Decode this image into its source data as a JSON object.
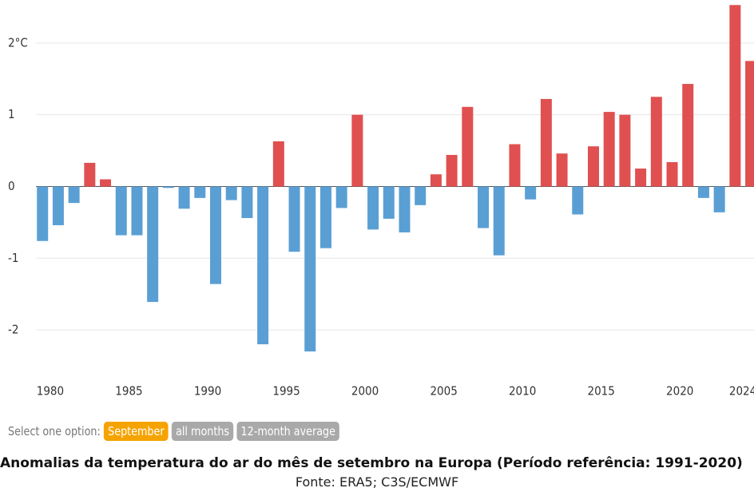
{
  "chart_data": {
    "type": "bar",
    "title": "Anomalias da temperatura do ar do mês de setembro na Europa (Período referência: 1991-2020)",
    "source": "Fonte: ERA5; C3S/ECMWF",
    "x": [
      1979,
      1980,
      1981,
      1982,
      1983,
      1984,
      1985,
      1986,
      1987,
      1988,
      1989,
      1990,
      1991,
      1992,
      1993,
      1994,
      1995,
      1996,
      1997,
      1998,
      1999,
      2000,
      2001,
      2002,
      2003,
      2004,
      2005,
      2006,
      2007,
      2008,
      2009,
      2010,
      2011,
      2012,
      2013,
      2014,
      2015,
      2016,
      2017,
      2018,
      2019,
      2020,
      2021,
      2022,
      2023,
      2024
    ],
    "values": [
      -0.76,
      -0.54,
      -0.23,
      0.33,
      0.1,
      -0.68,
      -0.68,
      -1.61,
      -0.02,
      -0.31,
      -0.16,
      -1.36,
      -0.19,
      -0.44,
      -2.2,
      0.63,
      -0.91,
      -2.3,
      -0.86,
      -0.3,
      1.0,
      -0.6,
      -0.45,
      -0.64,
      -0.26,
      0.17,
      0.44,
      1.11,
      -0.58,
      -0.96,
      0.59,
      -0.18,
      1.22,
      0.46,
      -0.39,
      0.56,
      1.04,
      1.0,
      0.25,
      1.25,
      0.34,
      1.43,
      -0.16,
      -0.36,
      2.53,
      1.75
    ],
    "positive_color": "#e05050",
    "negative_color": "#5a9fd4",
    "xlim": [
      1976.3,
      2024.2
    ],
    "xticks": [
      1980,
      1985,
      1990,
      1995,
      2000,
      2005,
      2010,
      2015,
      2020,
      2024
    ],
    "ylim": [
      -2.5,
      2.6
    ],
    "yticks": [
      {
        "value": 2,
        "label": "2°C"
      },
      1,
      0,
      -1,
      -2
    ],
    "grid": true
  },
  "controls": {
    "prompt": "Select one option:",
    "options": [
      "September",
      "all months",
      "12-month average"
    ],
    "selected": 0,
    "selected_color": "#f5a300",
    "color": "#a9a9a9"
  }
}
